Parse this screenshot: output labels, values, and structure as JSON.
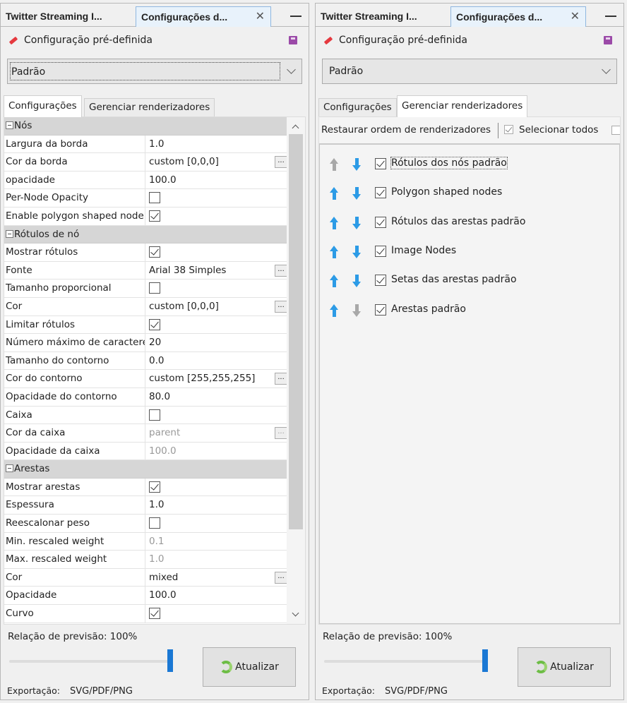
{
  "colors": {
    "accent": "#1a78d4",
    "arrow_enabled": "#2c9be6",
    "arrow_disabled": "#a8a8a8"
  },
  "panels": [
    {
      "doc_tabs": [
        "Twitter Streaming I...",
        "Configurações d..."
      ],
      "preset_label": "Configuração pré-definida",
      "preset_value": "Padrão",
      "tabs": [
        "Configurações",
        "Gerenciar renderizadores"
      ],
      "active_tab": 0,
      "ratio_label": "Relação de previsão:  100%",
      "ratio_value": 100,
      "update_label": "Atualizar",
      "export_label": "Exportação:",
      "export_formats": "SVG/PDF/PNG"
    },
    {
      "doc_tabs": [
        "Twitter Streaming I...",
        "Configurações d..."
      ],
      "preset_label": "Configuração pré-definida",
      "preset_value": "Padrão",
      "tabs": [
        "Configurações",
        "Gerenciar renderizadores"
      ],
      "active_tab": 1,
      "ratio_label": "Relação de previsão:  100%",
      "ratio_value": 100,
      "update_label": "Atualizar",
      "export_label": "Exportação:",
      "export_formats": "SVG/PDF/PNG"
    }
  ],
  "properties": [
    {
      "section": "Nós"
    },
    {
      "key": "Largura da borda",
      "value": "1.0"
    },
    {
      "key": "Cor da borda",
      "value": "custom [0,0,0]",
      "button": "..."
    },
    {
      "key": "opacidade",
      "value": "100.0"
    },
    {
      "key": "Per-Node Opacity",
      "check": false
    },
    {
      "key": "Enable polygon shaped node",
      "check": true
    },
    {
      "section": "Rótulos de nó"
    },
    {
      "key": "Mostrar rótulos",
      "check": true
    },
    {
      "key": "Fonte",
      "value": "Arial 38 Simples",
      "button": "..."
    },
    {
      "key": "Tamanho proporcional",
      "check": false
    },
    {
      "key": "Cor",
      "value": "custom [0,0,0]",
      "button": "..."
    },
    {
      "key": "Limitar rótulos",
      "check": true
    },
    {
      "key": "Número máximo de caractere",
      "value": "20"
    },
    {
      "key": "Tamanho do contorno",
      "value": "0.0"
    },
    {
      "key": "Cor do contorno",
      "value": "custom [255,255,255]",
      "button": "..."
    },
    {
      "key": "Opacidade do contorno",
      "value": "80.0"
    },
    {
      "key": "Caixa",
      "check": false
    },
    {
      "key": "Cor da caixa",
      "value": "parent",
      "button": "...",
      "disabled": true
    },
    {
      "key": "Opacidade da caixa",
      "value": "100.0",
      "disabled": true
    },
    {
      "section": "Arestas"
    },
    {
      "key": "Mostrar arestas",
      "check": true
    },
    {
      "key": "Espessura",
      "value": "1.0"
    },
    {
      "key": "Reescalonar peso",
      "check": false
    },
    {
      "key": "Min. rescaled weight",
      "value": "0.1",
      "disabled": true
    },
    {
      "key": "Max. rescaled weight",
      "value": "1.0",
      "disabled": true
    },
    {
      "key": "Cor",
      "value": "mixed",
      "button": "..."
    },
    {
      "key": "Opacidade",
      "value": "100.0"
    },
    {
      "key": "Curvo",
      "check": true
    }
  ],
  "renderers": {
    "restore_label": "Restaurar ordem de renderizadores",
    "select_all_label": "Selecionar todos",
    "items": [
      {
        "label": "Rótulos dos nós padrão",
        "checked": true,
        "up": false,
        "down": true
      },
      {
        "label": "Polygon shaped nodes",
        "checked": true,
        "up": true,
        "down": true
      },
      {
        "label": "Rótulos das arestas padrão",
        "checked": true,
        "up": true,
        "down": true
      },
      {
        "label": "Image Nodes",
        "checked": true,
        "up": true,
        "down": true
      },
      {
        "label": "Setas das arestas padrão",
        "checked": true,
        "up": true,
        "down": true
      },
      {
        "label": "Arestas padrão",
        "checked": true,
        "up": true,
        "down": false
      }
    ]
  }
}
